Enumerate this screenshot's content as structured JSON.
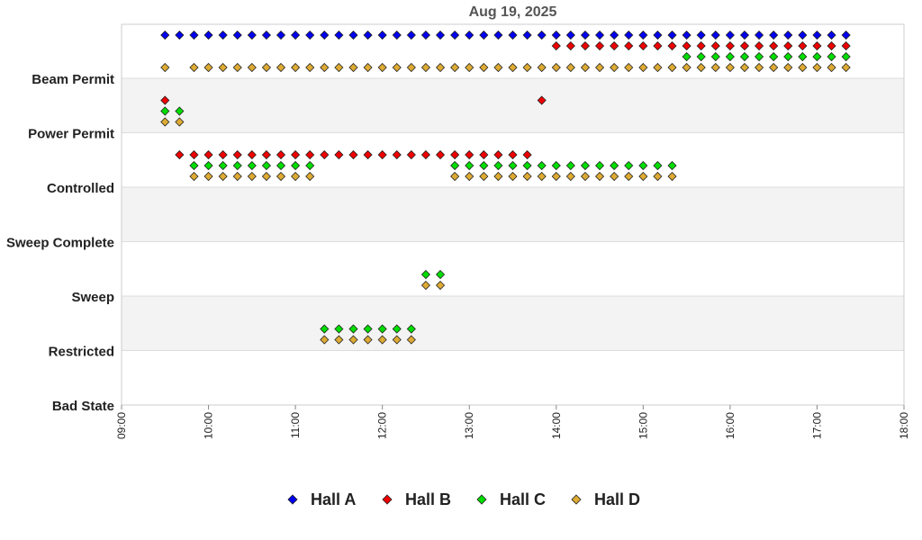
{
  "chart_data": {
    "type": "scatter",
    "title": "Aug 19, 2025",
    "xlabel": "",
    "ylabel": "",
    "x_ticks": [
      "09:00",
      "10:00",
      "11:00",
      "12:00",
      "13:00",
      "14:00",
      "15:00",
      "16:00",
      "17:00",
      "18:00"
    ],
    "xlim": [
      "09:00",
      "18:00"
    ],
    "x_step_minutes": 10,
    "categories": [
      "Beam Permit",
      "Power Permit",
      "Controlled",
      "Sweep Complete",
      "Sweep",
      "Restricted",
      "Bad State"
    ],
    "grid": "alternating-bands",
    "legend_position": "bottom",
    "series": [
      {
        "name": "Hall A",
        "color": "#0000ee",
        "segments": [
          {
            "category": "Beam Permit",
            "start": "09:30",
            "end": "17:20"
          }
        ]
      },
      {
        "name": "Hall B",
        "color": "#ee0000",
        "segments": [
          {
            "category": "Power Permit",
            "start": "09:30",
            "end": "09:30"
          },
          {
            "category": "Controlled",
            "start": "09:40",
            "end": "13:40"
          },
          {
            "category": "Power Permit",
            "start": "13:50",
            "end": "13:50"
          },
          {
            "category": "Beam Permit",
            "start": "14:00",
            "end": "17:20"
          }
        ]
      },
      {
        "name": "Hall C",
        "color": "#00dd00",
        "segments": [
          {
            "category": "Power Permit",
            "start": "09:30",
            "end": "09:40"
          },
          {
            "category": "Controlled",
            "start": "09:50",
            "end": "11:10"
          },
          {
            "category": "Restricted",
            "start": "11:20",
            "end": "12:20"
          },
          {
            "category": "Sweep",
            "start": "12:30",
            "end": "12:40"
          },
          {
            "category": "Controlled",
            "start": "12:50",
            "end": "15:20"
          },
          {
            "category": "Beam Permit",
            "start": "15:30",
            "end": "17:20"
          }
        ]
      },
      {
        "name": "Hall D",
        "color": "#ddaa33",
        "segments": [
          {
            "category": "Beam Permit",
            "start": "09:30",
            "end": "09:30"
          },
          {
            "category": "Power Permit",
            "start": "09:30",
            "end": "09:40"
          },
          {
            "category": "Controlled",
            "start": "09:50",
            "end": "11:10"
          },
          {
            "category": "Restricted",
            "start": "11:20",
            "end": "12:20"
          },
          {
            "category": "Sweep",
            "start": "12:30",
            "end": "12:40"
          },
          {
            "category": "Controlled",
            "start": "12:50",
            "end": "15:20"
          },
          {
            "category": "Beam Permit",
            "start": "09:50",
            "end": "17:20"
          }
        ]
      }
    ]
  }
}
